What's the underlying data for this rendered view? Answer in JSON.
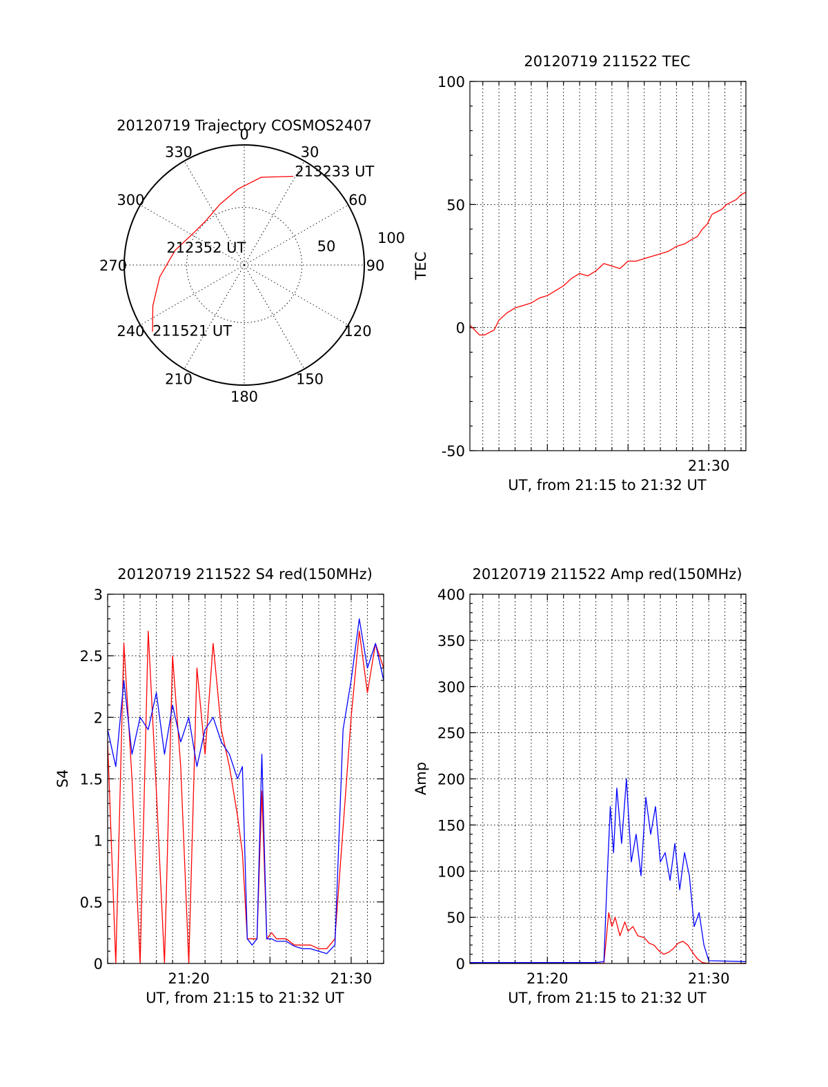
{
  "colors": {
    "red": "#ff0000",
    "blue": "#0000ff",
    "axis": "#000000",
    "background": "#ffffff"
  },
  "chart_data": [
    {
      "id": "trajectory",
      "type": "polar",
      "title": "20120719 Trajectory COSMOS2407",
      "azimuth_labels": [
        "0",
        "30",
        "60",
        "90",
        "120",
        "150",
        "180",
        "210",
        "240",
        "270",
        "300",
        "330"
      ],
      "radial_labels": [
        "50",
        "100"
      ],
      "grid": true,
      "series": [
        {
          "color": "red",
          "points": [
            {
              "az": 234,
              "el": 5
            },
            {
              "az": 246,
              "el": 15
            },
            {
              "az": 262,
              "el": 26
            },
            {
              "az": 282,
              "el": 37
            },
            {
              "az": 302,
              "el": 45
            },
            {
              "az": 320,
              "el": 46
            },
            {
              "az": 338,
              "el": 41
            },
            {
              "az": 355,
              "el": 33
            },
            {
              "az": 11,
              "el": 23
            },
            {
              "az": 29,
              "el": 14
            }
          ]
        }
      ],
      "annotations": [
        {
          "text": "213233 UT",
          "az": 29,
          "el": 14
        },
        {
          "text": "212352 UT",
          "az": 288,
          "el": 60
        },
        {
          "text": "211521 UT",
          "az": 234,
          "el": 5
        }
      ]
    },
    {
      "id": "tec",
      "type": "line",
      "title": "20120719 211522 TEC",
      "xlabel": "UT, from 21:15 to 21:32 UT",
      "ylabel": "TEC",
      "x_range_minutes": [
        15.2,
        32.3
      ],
      "ylim": [
        -50,
        100
      ],
      "yticks": [
        -50,
        0,
        50,
        100
      ],
      "xticks": [
        {
          "pos": 30,
          "label": "21:30"
        }
      ],
      "grid": true,
      "series": [
        {
          "color": "red",
          "x": [
            15.2,
            15.5,
            15.8,
            16.1,
            16.4,
            16.7,
            17.0,
            17.5,
            18.0,
            18.5,
            19.0,
            19.5,
            20.0,
            20.5,
            21.0,
            21.5,
            22.0,
            22.5,
            23.0,
            23.5,
            24.0,
            24.5,
            25.0,
            25.5,
            26.0,
            26.5,
            27.0,
            27.5,
            28.0,
            28.5,
            29.0,
            29.3,
            29.6,
            29.9,
            30.2,
            30.5,
            30.8,
            31.1,
            31.4,
            31.7,
            32.0,
            32.3
          ],
          "y": [
            1,
            -1,
            -3,
            -3,
            -2,
            -1,
            3,
            6,
            8,
            9,
            10,
            12,
            13,
            15,
            17,
            20,
            22,
            21,
            23,
            26,
            25,
            24,
            27,
            27,
            28,
            29,
            30,
            31,
            33,
            34,
            36,
            37,
            40,
            42,
            46,
            47,
            48,
            50,
            51,
            52,
            54,
            55
          ]
        }
      ]
    },
    {
      "id": "s4",
      "type": "line",
      "title": "20120719 211522 S4 red(150MHz)",
      "xlabel": "UT, from 21:15 to 21:32 UT",
      "ylabel": "S4",
      "x_range_minutes": [
        15.0,
        32.0
      ],
      "ylim": [
        0,
        3
      ],
      "yticks": [
        0,
        0.5,
        1,
        1.5,
        2,
        2.5,
        3
      ],
      "ytick_labels": [
        "0",
        "0.5",
        "1",
        "1.5",
        "2",
        "2.5",
        "3"
      ],
      "xticks": [
        {
          "pos": 20,
          "label": "21:20"
        },
        {
          "pos": 30,
          "label": "21:30"
        }
      ],
      "grid": true,
      "series": [
        {
          "color": "red",
          "x": [
            15.0,
            15.5,
            16.0,
            16.5,
            17.0,
            17.5,
            18.0,
            18.5,
            19.0,
            19.5,
            20.0,
            20.5,
            21.0,
            21.5,
            22.0,
            22.5,
            23.0,
            23.3,
            23.6,
            23.9,
            24.2,
            24.5,
            24.8,
            25.1,
            25.4,
            26.0,
            26.5,
            27.0,
            27.5,
            28.0,
            28.5,
            29.0,
            29.5,
            30.0,
            30.5,
            31.0,
            31.5,
            32.0
          ],
          "y": [
            1.8,
            0.0,
            2.6,
            1.5,
            0.0,
            2.7,
            1.4,
            0.0,
            2.5,
            1.6,
            0.0,
            2.4,
            1.7,
            2.6,
            1.9,
            1.6,
            1.2,
            0.9,
            0.2,
            0.2,
            0.2,
            1.4,
            0.2,
            0.25,
            0.2,
            0.2,
            0.15,
            0.15,
            0.15,
            0.12,
            0.12,
            0.2,
            1.1,
            2.0,
            2.7,
            2.2,
            2.6,
            2.4
          ]
        },
        {
          "color": "blue",
          "x": [
            15.0,
            15.5,
            16.0,
            16.5,
            17.0,
            17.5,
            18.0,
            18.5,
            19.0,
            19.5,
            20.0,
            20.5,
            21.0,
            21.5,
            22.0,
            22.5,
            23.0,
            23.3,
            23.6,
            23.9,
            24.2,
            24.5,
            24.8,
            25.1,
            25.4,
            26.0,
            26.5,
            27.0,
            27.5,
            28.0,
            28.5,
            29.0,
            29.5,
            30.0,
            30.5,
            31.0,
            31.5,
            32.0
          ],
          "y": [
            1.9,
            1.6,
            2.3,
            1.7,
            2.0,
            1.9,
            2.2,
            1.7,
            2.1,
            1.8,
            2.0,
            1.6,
            1.9,
            2.0,
            1.8,
            1.7,
            1.5,
            1.6,
            0.2,
            0.15,
            0.2,
            1.7,
            0.2,
            0.2,
            0.18,
            0.18,
            0.14,
            0.12,
            0.12,
            0.1,
            0.08,
            0.15,
            1.9,
            2.3,
            2.8,
            2.4,
            2.6,
            2.3
          ]
        }
      ]
    },
    {
      "id": "amp",
      "type": "line",
      "title": "20120719 211522 Amp red(150MHz)",
      "xlabel": "UT, from 21:15 to 21:32 UT",
      "ylabel": "Amp",
      "x_range_minutes": [
        15.2,
        32.3
      ],
      "ylim": [
        0,
        400
      ],
      "yticks": [
        0,
        50,
        100,
        150,
        200,
        250,
        300,
        350,
        400
      ],
      "xticks": [
        {
          "pos": 20,
          "label": "21:20"
        },
        {
          "pos": 30,
          "label": "21:30"
        }
      ],
      "grid": true,
      "series": [
        {
          "color": "red",
          "x": [
            15.2,
            23.0,
            23.5,
            23.8,
            24.0,
            24.2,
            24.5,
            24.8,
            25.0,
            25.3,
            25.6,
            26.0,
            26.3,
            26.6,
            26.9,
            27.2,
            27.5,
            27.8,
            28.1,
            28.4,
            28.7,
            29.0,
            29.3,
            29.6,
            30.0,
            32.3
          ],
          "y": [
            0,
            0,
            0,
            55,
            40,
            50,
            30,
            45,
            35,
            40,
            30,
            28,
            22,
            20,
            14,
            10,
            12,
            16,
            22,
            24,
            20,
            12,
            5,
            1,
            0,
            0
          ]
        },
        {
          "color": "blue",
          "x": [
            15.2,
            23.0,
            23.5,
            23.7,
            23.9,
            24.1,
            24.3,
            24.6,
            24.9,
            25.2,
            25.5,
            25.8,
            26.1,
            26.4,
            26.7,
            27.0,
            27.3,
            27.6,
            27.9,
            28.2,
            28.5,
            28.8,
            29.1,
            29.4,
            29.7,
            30.0,
            32.3
          ],
          "y": [
            1,
            1,
            2,
            90,
            170,
            120,
            190,
            130,
            200,
            110,
            140,
            95,
            180,
            140,
            170,
            110,
            120,
            90,
            130,
            80,
            120,
            95,
            40,
            55,
            20,
            3,
            2
          ]
        }
      ]
    }
  ]
}
